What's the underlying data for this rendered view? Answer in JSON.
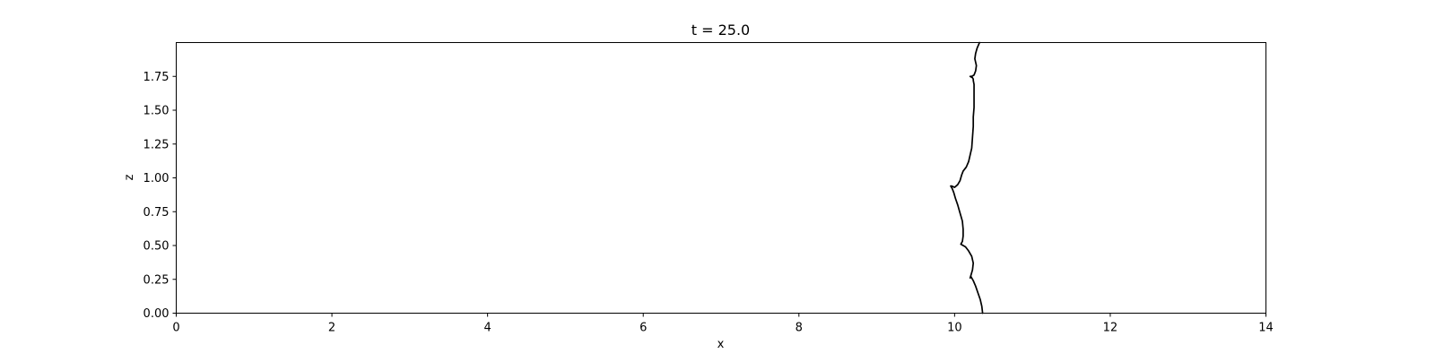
{
  "chart_data": {
    "type": "line",
    "title": "t = 25.0",
    "xlabel": "x",
    "ylabel": "z",
    "xlim": [
      0,
      14
    ],
    "ylim": [
      0,
      2.0
    ],
    "xticks": [
      0,
      2,
      4,
      6,
      8,
      10,
      12,
      14
    ],
    "xtick_labels": [
      "0",
      "2",
      "4",
      "6",
      "8",
      "10",
      "12",
      "14"
    ],
    "yticks": [
      0.0,
      0.25,
      0.5,
      0.75,
      1.0,
      1.25,
      1.5,
      1.75
    ],
    "ytick_labels": [
      "0.00",
      "0.25",
      "0.50",
      "0.75",
      "1.00",
      "1.25",
      "1.50",
      "1.75"
    ],
    "grid": false,
    "series": [
      {
        "color": "#000000",
        "x": [
          10.36,
          10.35,
          10.33,
          10.3,
          10.27,
          10.24,
          10.21,
          10.2,
          10.21,
          10.23,
          10.24,
          10.22,
          10.18,
          10.14,
          10.11,
          10.08,
          10.1,
          10.11,
          10.11,
          10.1,
          10.08,
          10.06,
          10.04,
          10.01,
          9.99,
          9.97,
          9.95,
          9.96,
          10.0,
          10.04,
          10.07,
          10.09,
          10.11,
          10.15,
          10.18,
          10.2,
          10.22,
          10.23,
          10.24,
          10.24,
          10.25,
          10.25,
          10.25,
          10.25,
          10.24,
          10.24,
          10.23,
          10.2,
          10.22,
          10.25,
          10.27,
          10.28,
          10.26,
          10.27,
          10.29,
          10.32
        ],
        "y": [
          0.0,
          0.05,
          0.1,
          0.15,
          0.2,
          0.24,
          0.27,
          0.26,
          0.28,
          0.32,
          0.37,
          0.42,
          0.46,
          0.49,
          0.5,
          0.51,
          0.53,
          0.57,
          0.62,
          0.68,
          0.72,
          0.76,
          0.8,
          0.85,
          0.89,
          0.92,
          0.94,
          0.94,
          0.93,
          0.95,
          0.98,
          1.02,
          1.05,
          1.08,
          1.12,
          1.17,
          1.22,
          1.3,
          1.38,
          1.45,
          1.52,
          1.58,
          1.64,
          1.69,
          1.72,
          1.73,
          1.74,
          1.75,
          1.75,
          1.76,
          1.79,
          1.83,
          1.88,
          1.92,
          1.96,
          2.0
        ]
      }
    ]
  }
}
